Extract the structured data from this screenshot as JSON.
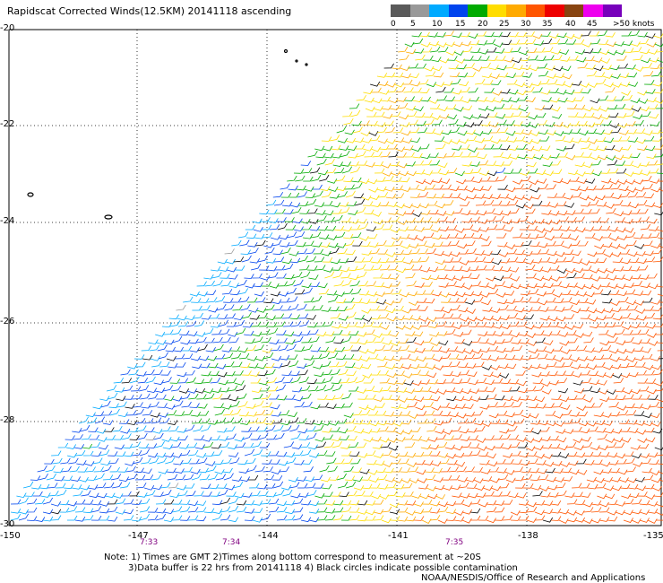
{
  "title": "Rapidscat Corrected Winds(12.5KM) 20141118 ascending",
  "legend": {
    "labels": [
      "0",
      "5",
      "10",
      "15",
      "20",
      "25",
      "30",
      "35",
      "40",
      "45",
      ">50 knots"
    ],
    "colors": [
      "#5a5a5a",
      "#999999",
      "#00aaff",
      "#0044ee",
      "#00aa00",
      "#ffdd00",
      "#ffaa00",
      "#ff5500",
      "#ee0000",
      "#884411",
      "#ee00ee",
      "#7700bb"
    ]
  },
  "axes": {
    "lat_labels": [
      "-20",
      "-22",
      "-24",
      "-26",
      "-28",
      "-30"
    ],
    "lon_labels": [
      "-150",
      "-147",
      "-144",
      "-141",
      "-138",
      "-135"
    ]
  },
  "times": [
    "7:33",
    "7:34",
    "7:35"
  ],
  "notes": {
    "line1": "Note: 1) Times are GMT 2)Times along bottom correspond to measurement at ~20S",
    "line2": "3)Data buffer is 22 hrs from 20141118 4) Black circles indicate possible contamination",
    "line3": "NOAA/NESDIS/Office of Research and Applications"
  }
}
